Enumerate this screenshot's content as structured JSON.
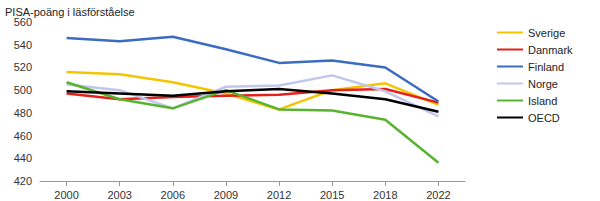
{
  "chart_data": {
    "type": "line",
    "y_label": "PISA-poäng i läsförståelse",
    "categories": [
      "2000",
      "2003",
      "2006",
      "2009",
      "2012",
      "2015",
      "2018",
      "2022"
    ],
    "series": [
      {
        "name": "Sverige",
        "color": "#f5c400",
        "values": [
          516,
          514,
          507,
          497,
          483,
          500,
          506,
          487
        ]
      },
      {
        "name": "Danmark",
        "color": "#e3201b",
        "values": [
          497,
          492,
          494,
          495,
          496,
          500,
          501,
          489
        ]
      },
      {
        "name": "Finland",
        "color": "#3b6cc0",
        "values": [
          546,
          543,
          547,
          536,
          524,
          526,
          520,
          490
        ]
      },
      {
        "name": "Norge",
        "color": "#c3c6ec",
        "values": [
          505,
          500,
          484,
          503,
          504,
          513,
          499,
          477
        ]
      },
      {
        "name": "Island",
        "color": "#58b42e",
        "values": [
          507,
          492,
          484,
          500,
          483,
          482,
          474,
          436
        ]
      },
      {
        "name": "OECD",
        "color": "#000000",
        "values": [
          499,
          497,
          495,
          499,
          501,
          497,
          492,
          481
        ]
      }
    ],
    "ylim": [
      420,
      560
    ],
    "yticks": [
      420,
      440,
      460,
      480,
      500,
      520,
      540,
      560
    ],
    "grid": false,
    "legend": "right"
  }
}
